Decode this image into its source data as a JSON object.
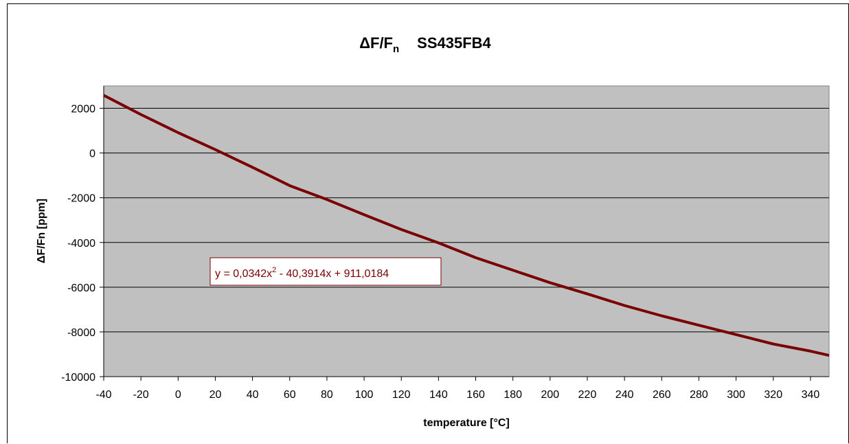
{
  "chart_data": {
    "type": "line",
    "title": "ΔF/Fn   SS435FB4",
    "title_parts": {
      "delta": "Δ",
      "main": "F/F",
      "subscript": "n",
      "device": "SS435FB4"
    },
    "xlabel": "temperature [°C]",
    "ylabel": "ΔF/Fn [ppm]",
    "xlim": [
      -40,
      350
    ],
    "ylim": [
      -10000,
      3000
    ],
    "x_ticks": [
      "-40",
      "-20",
      "0",
      "20",
      "40",
      "60",
      "80",
      "100",
      "120",
      "140",
      "160",
      "180",
      "200",
      "220",
      "240",
      "260",
      "280",
      "300",
      "320",
      "340"
    ],
    "y_ticks": [
      "2000",
      "0",
      "-2000",
      "-4000",
      "-6000",
      "-8000",
      "-10000"
    ],
    "grid": "horizontal",
    "plot_background": "#c0c0c0",
    "series": [
      {
        "color": "#7a0000",
        "x": [
          -40,
          -20,
          0,
          20,
          40,
          60,
          80,
          100,
          120,
          140,
          160,
          180,
          200,
          220,
          240,
          260,
          280,
          300,
          320,
          340,
          350
        ],
        "y": [
          2580,
          1720,
          910,
          150,
          -640,
          -1460,
          -2080,
          -2760,
          -3420,
          -4020,
          -4680,
          -5240,
          -5800,
          -6300,
          -6820,
          -7280,
          -7700,
          -8120,
          -8540,
          -8860,
          -9050
        ]
      }
    ],
    "trendline_equation": {
      "prefix": "y = 0,0342x",
      "exponent": "2",
      "suffix": " - 40,3914x + 911,0184"
    }
  }
}
